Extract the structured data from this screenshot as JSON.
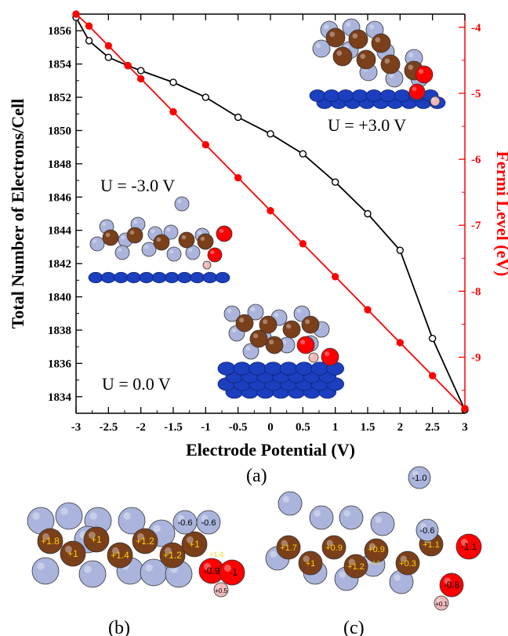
{
  "colors": {
    "black_series": "#000000",
    "red_series": "#ff0000",
    "carbon": "#7b3f1a",
    "hydrogen_side": "#aab4dc",
    "oxygen": "#ff0000",
    "hydrogen": "#f0b8b8",
    "surface": "#1b3fbf"
  },
  "chart_data": {
    "type": "line",
    "xlabel": "Electrode Potential (V)",
    "ylabel": "Total Number of Electrons/Cell",
    "y2label": "Fermi Level (eV)",
    "xlim": [
      -3,
      3
    ],
    "ylim": [
      1833,
      1857
    ],
    "y2lim": [
      -9.85,
      -3.8
    ],
    "x_ticks": [
      "-3",
      "-2.5",
      "-2",
      "-1.5",
      "-1",
      "-0.5",
      "0",
      "0.5",
      "1",
      "1.5",
      "2",
      "2.5",
      "3"
    ],
    "y_ticks": [
      "1834",
      "1836",
      "1838",
      "1840",
      "1842",
      "1844",
      "1846",
      "1848",
      "1850",
      "1852",
      "1854",
      "1856"
    ],
    "y2_ticks": [
      "-4",
      "-5",
      "-6",
      "-7",
      "-8",
      "-9"
    ],
    "series": [
      {
        "axis": "left",
        "marker": "open-circle",
        "x": [
          -3,
          -2.8,
          -2.5,
          -2.2,
          -2,
          -1.5,
          -1,
          -0.5,
          0,
          0.5,
          1,
          1.5,
          2,
          2.5,
          3
        ],
        "y": [
          1856.8,
          1855.4,
          1854.4,
          1853.9,
          1853.6,
          1852.9,
          1852.0,
          1850.8,
          1849.8,
          1848.6,
          1846.9,
          1845.0,
          1842.8,
          1837.5,
          1833.2
        ]
      },
      {
        "axis": "right",
        "marker": "filled-circle",
        "x": [
          -3,
          -2.8,
          -2.5,
          -2.2,
          -2,
          -1.5,
          -1,
          -0.5,
          0,
          0.5,
          1,
          1.5,
          2,
          2.5,
          3
        ],
        "y": [
          -3.8,
          -3.98,
          -4.28,
          -4.58,
          -4.78,
          -5.28,
          -5.78,
          -6.28,
          -6.78,
          -7.28,
          -7.78,
          -8.28,
          -8.78,
          -9.28,
          -9.78
        ]
      }
    ]
  },
  "annotations": {
    "u_pos": "U  =  +3.0  V",
    "u_neg": "U  =  -3.0  V",
    "u_zero": "U  =  0.0  V"
  },
  "panel_labels": {
    "a": "(a)",
    "b": "(b)",
    "c": "(c)"
  },
  "panel_b_charges": [
    "+1.8",
    "+1",
    "+1",
    "+1.4",
    "+1.2",
    "+1.2",
    "+1",
    "-0.6",
    "-0.6",
    "+1.4",
    "-0.9",
    "-1",
    "+0.5"
  ],
  "panel_c_charges": [
    "-1.0",
    "+1.7",
    "+1",
    "+0.9",
    "+1.2",
    "+1.0",
    "+0.9",
    "-0.6",
    "+0.3",
    "+1.1",
    "-1.1",
    "-0.8",
    "+0.1"
  ]
}
